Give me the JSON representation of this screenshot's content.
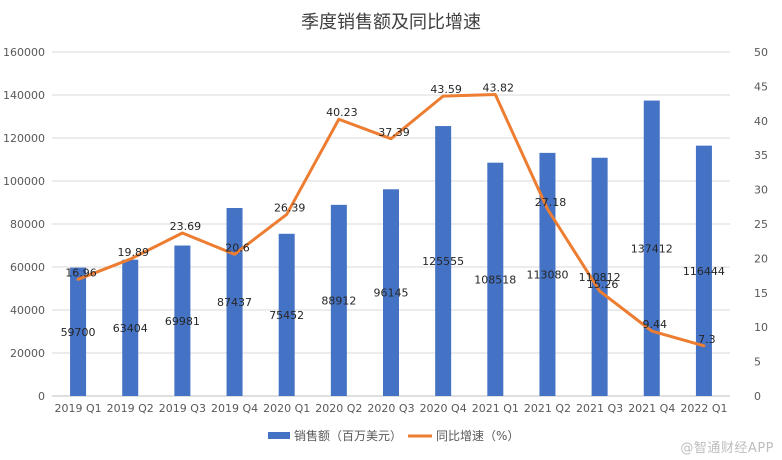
{
  "watermark": "@智通财经APP",
  "chart_data": {
    "type": "bar",
    "title": "季度销售额及同比增速",
    "categories": [
      "2019 Q1",
      "2019 Q2",
      "2019 Q3",
      "2019 Q4",
      "2020 Q1",
      "2020 Q2",
      "2020 Q3",
      "2020 Q4",
      "2021 Q1",
      "2021 Q2",
      "2021 Q3",
      "2021 Q4",
      "2022 Q1"
    ],
    "series": [
      {
        "name": "销售额（百万美元）",
        "type": "bar",
        "axis": "left",
        "color": "#4472C4",
        "values": [
          59700,
          63404,
          69981,
          87437,
          75452,
          88912,
          96145,
          125555,
          108518,
          113080,
          110812,
          137412,
          116444
        ],
        "labels": [
          "59700",
          "63404",
          "69981",
          "87437",
          "75452",
          "88912",
          "96145",
          "125555",
          "108518",
          "113080",
          "110812",
          "137412",
          "116444"
        ]
      },
      {
        "name": "同比增速（%）",
        "type": "line",
        "axis": "right",
        "color": "#ED7D31",
        "values": [
          16.96,
          19.89,
          23.69,
          20.6,
          26.39,
          40.23,
          37.39,
          43.59,
          43.82,
          27.18,
          15.26,
          9.44,
          7.3
        ],
        "labels": [
          "16.96",
          "19.89",
          "23.69",
          "20.6",
          "26.39",
          "40.23",
          "37.39",
          "43.59",
          "43.82",
          "27.18",
          "15.26",
          "9.44",
          "7.3"
        ]
      }
    ],
    "y_left": {
      "min": 0,
      "max": 160000,
      "step": 20000,
      "ticks": [
        "0",
        "20000",
        "40000",
        "60000",
        "80000",
        "100000",
        "120000",
        "140000",
        "160000"
      ]
    },
    "y_right": {
      "min": 0,
      "max": 50,
      "step": 5,
      "ticks": [
        "0",
        "5",
        "10",
        "15",
        "20",
        "25",
        "30",
        "35",
        "40",
        "45",
        "50"
      ]
    },
    "grid": true,
    "legend_position": "bottom"
  }
}
